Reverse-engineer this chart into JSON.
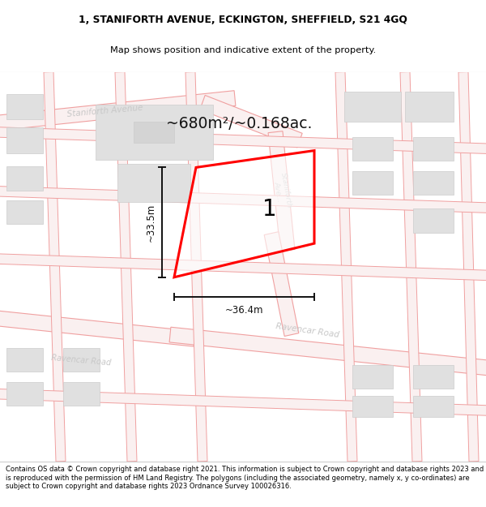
{
  "title_line1": "1, STANIFORTH AVENUE, ECKINGTON, SHEFFIELD, S21 4GQ",
  "title_line2": "Map shows position and indicative extent of the property.",
  "footer_text": "Contains OS data © Crown copyright and database right 2021. This information is subject to Crown copyright and database rights 2023 and is reproduced with the permission of HM Land Registry. The polygons (including the associated geometry, namely x, y co-ordinates) are subject to Crown copyright and database rights 2023 Ordnance Survey 100026316.",
  "area_label": "~680m²/~0.168ac.",
  "property_number": "1",
  "width_label": "~36.4m",
  "height_label": "~33.5m",
  "map_bg": "#f8f8f8",
  "road_line_col": "#f0a0a0",
  "road_fill_col": "#f5e8e8",
  "building_face": "#e0e0e0",
  "building_edge": "#cccccc",
  "property_edge": "#ff0000",
  "road_label_col": "#c8c8c8",
  "dim_col": "#111111",
  "area_label_col": "#111111",
  "header_bg": "#ffffff",
  "footer_bg": "#ffffff",
  "sep_col": "#cccccc"
}
